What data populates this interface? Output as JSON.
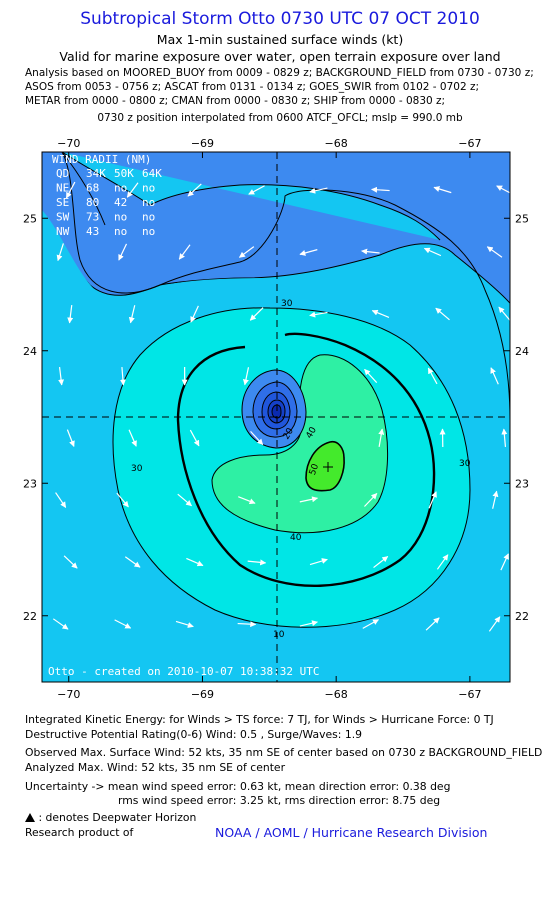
{
  "title": "Subtropical Storm Otto 0730 UTC 07 OCT 2010",
  "subtitle1": "Max 1-min sustained surface winds (kt)",
  "subtitle2": "Valid for marine exposure over water, open terrain exposure over land",
  "analysis_lines": [
    "Analysis based on MOORED_BUOY from 0009 - 0829 z; BACKGROUND_FIELD from 0730 - 0730 z;",
    "ASOS from 0053 - 0756 z; ASCAT from 0131 - 0134 z; GOES_SWIR from 0102 - 0702 z;",
    "METAR from 0000 - 0800 z; CMAN from 0000 - 0830 z; SHIP from 0000 - 0830 z;"
  ],
  "position_line": "0730 z position interpolated from 0600 ATCF_OFCL; mslp = 990.0 mb",
  "map": {
    "lon_ticks": [
      -70,
      -69,
      -68,
      -67
    ],
    "lat_ticks": [
      25,
      24,
      23,
      22
    ],
    "lon_range": [
      -70.2,
      -66.7
    ],
    "lat_range": [
      21.5,
      25.5
    ],
    "center": {
      "lon": -68.18,
      "lat": 23.57
    },
    "max_wind_pos": {
      "lon": -67.83,
      "lat": 23.18
    },
    "contour_labels": [
      "30",
      "30",
      "30",
      "40",
      "40",
      "50",
      "20",
      "10"
    ],
    "colors": {
      "ocean_deep": "#3d8af0",
      "level_20": "#14c6f2",
      "level_30": "#00e6e6",
      "level_40": "#2ef0a4",
      "level_50": "#44ea2c"
    }
  },
  "wind_radii": {
    "title": "WIND RADII (NM)",
    "header": [
      "QD",
      "34K",
      "50K",
      "64K"
    ],
    "rows": [
      [
        "NE",
        "68",
        "no",
        "no"
      ],
      [
        "SE",
        "80",
        "42",
        "no"
      ],
      [
        "SW",
        "73",
        "no",
        "no"
      ],
      [
        "NW",
        "43",
        "no",
        "no"
      ]
    ]
  },
  "created_label": "Otto - created on 2010-10-07 10:38:32 UTC",
  "footer": {
    "ike": "Integrated Kinetic Energy:  for Winds > TS force: 7 TJ,  for Winds > Hurricane Force: 0 TJ",
    "dpr": "Destructive Potential Rating(0-6)   Wind: 0.5 , Surge/Waves: 1.9",
    "observed": "Observed Max. Surface Wind: 52 kts, 35 nm SE of center based on 0730 z BACKGROUND_FIELD",
    "analyzed": "Analyzed Max. Wind: 52 kts, 35 nm SE of center",
    "uncert1": "Uncertainty -> mean wind speed error: 0.63 kt,   mean direction error: 0.38 deg",
    "uncert2": "rms wind speed error: 3.25 kt,   rms direction error: 8.75 deg",
    "deepwater": ": denotes Deepwater Horizon",
    "research": "Research product of",
    "noaa": "NOAA / AOML / Hurricane Research Division"
  }
}
